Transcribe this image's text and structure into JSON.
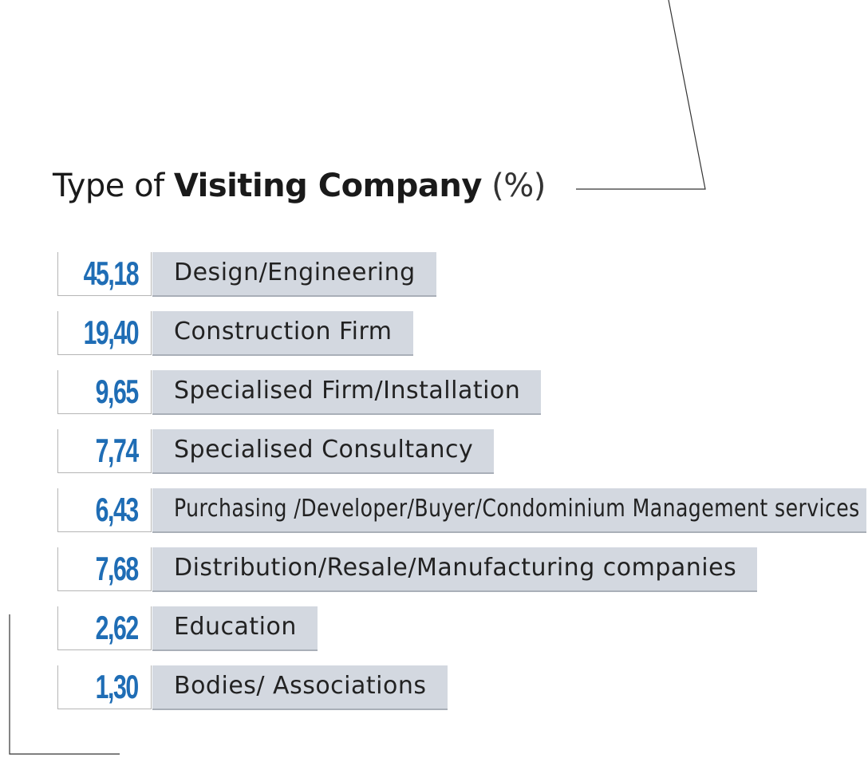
{
  "title": {
    "prefix": "Type of ",
    "emphasis": "Visiting Company",
    "unit": "(%)"
  },
  "chart_data": {
    "type": "bar",
    "orientation": "horizontal",
    "title": "Type of Visiting Company (%)",
    "categories": [
      "Design/Engineering",
      "Construction Firm",
      "Specialised Firm/Installation",
      "Specialised Consultancy",
      "Purchasing /Developer/Buyer/Condominium Management services",
      "Distribution/Resale/Manufacturing companies",
      "Education",
      "Bodies/ Associations"
    ],
    "values": [
      45.18,
      19.4,
      9.65,
      7.74,
      6.43,
      7.68,
      2.62,
      1.3
    ],
    "value_labels": [
      "45,18",
      "19,40",
      "9,65",
      "7,74",
      "6,43",
      "7,68",
      "2,62",
      "1,30"
    ],
    "colors": {
      "value_text": "#1f6db5",
      "bar_fill": "#d3d8e0",
      "bar_shadow": "#a9afb8"
    }
  }
}
